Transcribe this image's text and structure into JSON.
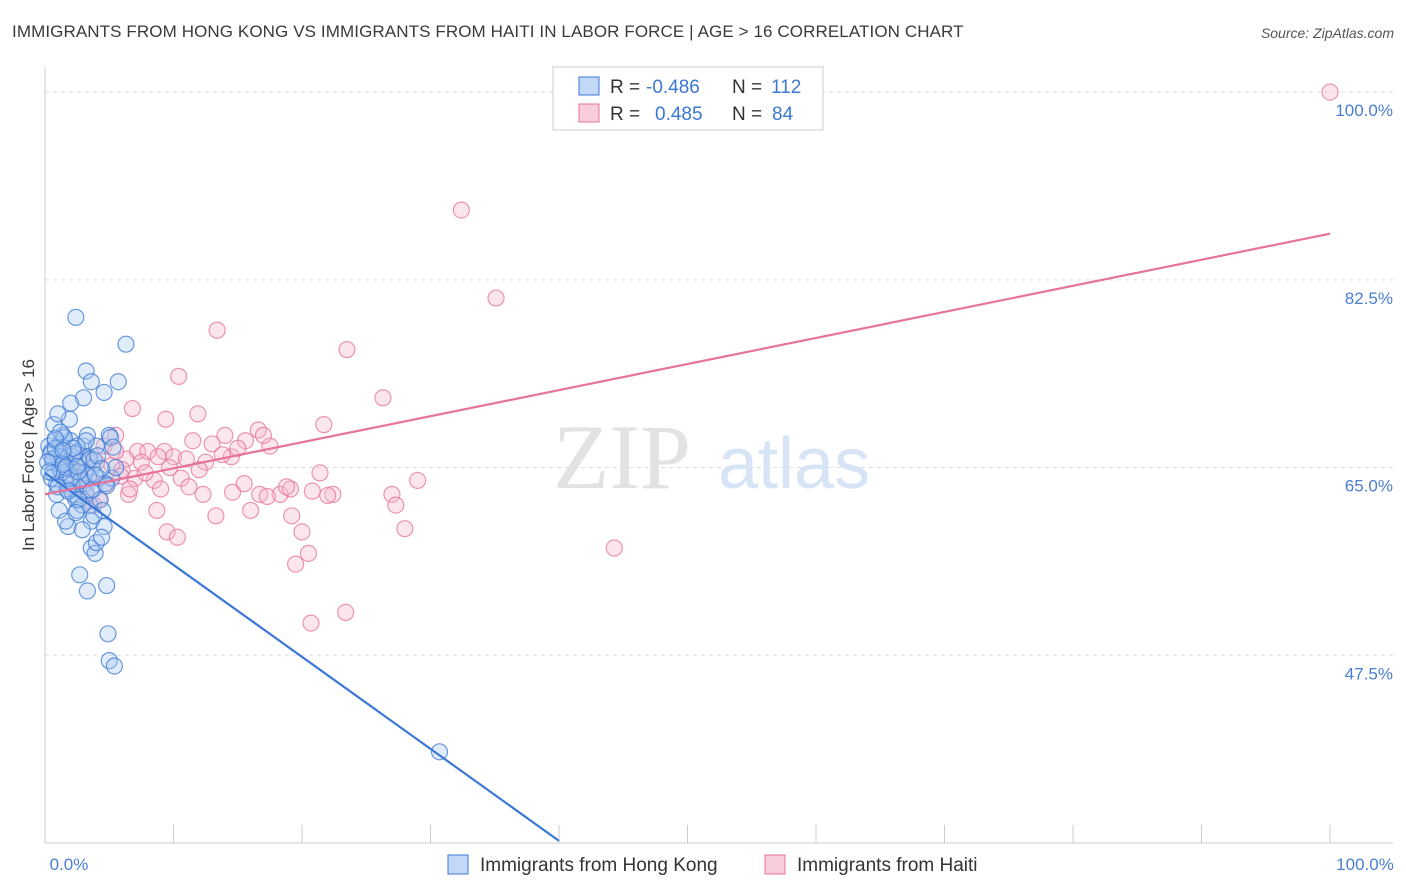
{
  "title": "IMMIGRANTS FROM HONG KONG VS IMMIGRANTS FROM HAITI IN LABOR FORCE | AGE > 16 CORRELATION CHART",
  "source": "Source: ZipAtlas.com",
  "watermark": {
    "zip": "ZIP",
    "atlas": "atlas"
  },
  "colors": {
    "blue": "#3b78d6",
    "blue_fill": "#a9c8f2",
    "pink": "#e6739a",
    "pink_fill": "#f5b8cc",
    "grid": "#dddddd",
    "tick_text": "#4a7fd0"
  },
  "legend": {
    "r_label": "R =",
    "n_label": "N =",
    "rows": [
      {
        "series": "hk",
        "r": "-0.486",
        "n": "112"
      },
      {
        "series": "haiti",
        "r": "0.485",
        "n": "84"
      }
    ]
  },
  "chart_data": {
    "type": "scatter",
    "title": "IMMIGRANTS FROM HONG KONG VS IMMIGRANTS FROM HAITI IN LABOR FORCE | AGE > 16 CORRELATION CHART",
    "xlabel": "",
    "ylabel": "In Labor Force | Age > 16",
    "xlim": [
      0,
      100
    ],
    "ylim": [
      30,
      101.5
    ],
    "x_tick_labels": [
      {
        "value": 0,
        "label": "0.0%"
      },
      {
        "value": 100,
        "label": "100.0%"
      }
    ],
    "y_ticks": [
      {
        "value": 100,
        "label": "100.0%"
      },
      {
        "value": 82.5,
        "label": "82.5%"
      },
      {
        "value": 65,
        "label": "65.0%"
      },
      {
        "value": 47.5,
        "label": "47.5%"
      }
    ],
    "grid": true,
    "legend_position": "top-center",
    "series": [
      {
        "name": "Immigrants from Hong Kong",
        "key": "hk",
        "trend": {
          "x0": 0,
          "y0": 64.5,
          "x1": 40,
          "y1": 30.2
        },
        "points": [
          [
            0.3,
            67
          ],
          [
            0.5,
            66.5
          ],
          [
            0.6,
            65.5
          ],
          [
            0.8,
            67.5
          ],
          [
            1,
            66
          ],
          [
            1.1,
            65
          ],
          [
            1.2,
            67.2
          ],
          [
            0.9,
            63.5
          ],
          [
            1.3,
            64.5
          ],
          [
            1.4,
            68
          ],
          [
            1.5,
            65.8
          ],
          [
            1.6,
            66.8
          ],
          [
            1.7,
            64
          ],
          [
            1.8,
            65.2
          ],
          [
            2,
            67.5
          ],
          [
            2.1,
            66
          ],
          [
            2.2,
            64.8
          ],
          [
            2.3,
            63
          ],
          [
            1.9,
            69.5
          ],
          [
            2.4,
            62
          ],
          [
            2.5,
            61
          ],
          [
            2.6,
            66.5
          ],
          [
            2.7,
            65.5
          ],
          [
            2.8,
            64
          ],
          [
            3,
            67
          ],
          [
            3.1,
            63.5
          ],
          [
            3.2,
            62.5
          ],
          [
            3.3,
            68
          ],
          [
            3.4,
            66
          ],
          [
            3.5,
            61.5
          ],
          [
            3.6,
            60
          ],
          [
            3.7,
            65
          ],
          [
            3.8,
            63
          ],
          [
            4,
            67
          ],
          [
            4.2,
            64
          ],
          [
            4.3,
            62
          ],
          [
            4.5,
            61
          ],
          [
            4.7,
            63.5
          ],
          [
            5,
            68
          ],
          [
            5.2,
            64
          ],
          [
            5.5,
            65
          ],
          [
            0.7,
            69
          ],
          [
            1,
            70
          ],
          [
            1.5,
            67.8
          ],
          [
            2,
            71
          ],
          [
            2.5,
            67
          ],
          [
            3,
            71.5
          ],
          [
            3.2,
            74
          ],
          [
            3.6,
            73
          ],
          [
            4.6,
            72
          ],
          [
            5.7,
            73
          ],
          [
            6.3,
            76.5
          ],
          [
            2.4,
            79
          ],
          [
            1.1,
            61
          ],
          [
            1.8,
            59.5
          ],
          [
            2.2,
            62.5
          ],
          [
            2.7,
            55
          ],
          [
            3.3,
            53.5
          ],
          [
            3.6,
            57.5
          ],
          [
            3.9,
            57
          ],
          [
            4,
            58
          ],
          [
            4.6,
            59.5
          ],
          [
            4.8,
            54
          ],
          [
            4.9,
            49.5
          ],
          [
            5,
            47
          ],
          [
            5.4,
            46.5
          ],
          [
            1.6,
            60
          ],
          [
            2.9,
            61.5
          ],
          [
            3.8,
            60.5
          ],
          [
            4.4,
            58.5
          ],
          [
            0.5,
            64
          ],
          [
            0.9,
            62.5
          ],
          [
            1.3,
            66
          ],
          [
            1.7,
            63
          ],
          [
            2.1,
            63.5
          ],
          [
            2.6,
            62
          ],
          [
            3.1,
            64.5
          ],
          [
            3.5,
            65.8
          ],
          [
            0.4,
            66.2
          ],
          [
            0.6,
            65.8
          ],
          [
            0.8,
            66.8
          ],
          [
            1.2,
            64.8
          ],
          [
            1.4,
            65.3
          ],
          [
            2.3,
            66.3
          ],
          [
            2.8,
            63.8
          ],
          [
            3.4,
            64.2
          ],
          [
            0.2,
            65.5
          ],
          [
            0.6,
            64.5
          ],
          [
            1.2,
            68.3
          ],
          [
            1.6,
            65
          ],
          [
            2,
            64
          ],
          [
            2.2,
            66.8
          ],
          [
            2.6,
            64.6
          ],
          [
            3.2,
            67.5
          ],
          [
            3.8,
            65.7
          ],
          [
            4.1,
            66.1
          ],
          [
            4.4,
            64.9
          ],
          [
            4.8,
            63.3
          ],
          [
            5.1,
            67.8
          ],
          [
            5.3,
            66.9
          ],
          [
            1,
            63.2
          ],
          [
            1.8,
            62.8
          ],
          [
            2.4,
            60.8
          ],
          [
            2.9,
            59.2
          ],
          [
            0.8,
            67.7
          ],
          [
            1.4,
            66.6
          ],
          [
            0.3,
            64.6
          ],
          [
            2.5,
            65.1
          ],
          [
            3.6,
            62.9
          ],
          [
            3.9,
            64.3
          ],
          [
            30.7,
            38.5
          ]
        ]
      },
      {
        "name": "Immigrants from Haiti",
        "key": "haiti",
        "trend": {
          "x0": 0,
          "y0": 62.5,
          "x1": 100,
          "y1": 86.8
        },
        "points": [
          [
            100,
            100
          ],
          [
            32.4,
            89
          ],
          [
            35.1,
            80.8
          ],
          [
            13.4,
            77.8
          ],
          [
            23.5,
            76
          ],
          [
            10.4,
            73.5
          ],
          [
            26.3,
            71.5
          ],
          [
            6.8,
            70.5
          ],
          [
            11.9,
            70
          ],
          [
            9.4,
            69.5
          ],
          [
            16.6,
            68.5
          ],
          [
            21.7,
            69
          ],
          [
            5.5,
            68
          ],
          [
            14,
            68
          ],
          [
            13,
            67.2
          ],
          [
            15.6,
            67.5
          ],
          [
            17.5,
            67
          ],
          [
            4.6,
            67
          ],
          [
            7.2,
            66.5
          ],
          [
            8,
            66.5
          ],
          [
            9.3,
            66.5
          ],
          [
            10,
            66
          ],
          [
            11,
            65.8
          ],
          [
            12.5,
            65.5
          ],
          [
            14.5,
            66
          ],
          [
            6.3,
            65.8
          ],
          [
            7.5,
            65.5
          ],
          [
            5.2,
            65.2
          ],
          [
            6,
            64.8
          ],
          [
            3,
            66
          ],
          [
            4,
            65.5
          ],
          [
            2.5,
            64.5
          ],
          [
            3.5,
            64
          ],
          [
            4.8,
            63.5
          ],
          [
            5.9,
            64.2
          ],
          [
            7,
            64
          ],
          [
            8.5,
            63.8
          ],
          [
            9,
            63
          ],
          [
            10.6,
            64
          ],
          [
            11.2,
            63.2
          ],
          [
            12.3,
            62.5
          ],
          [
            14.6,
            62.7
          ],
          [
            15.5,
            63.5
          ],
          [
            16.7,
            62.5
          ],
          [
            18.3,
            62.5
          ],
          [
            19.1,
            63
          ],
          [
            20.8,
            62.8
          ],
          [
            22.4,
            62.5
          ],
          [
            8.7,
            61
          ],
          [
            9.5,
            59
          ],
          [
            10.3,
            58.5
          ],
          [
            13.3,
            60.5
          ],
          [
            16,
            61
          ],
          [
            19.2,
            60.5
          ],
          [
            20,
            59
          ],
          [
            20.5,
            57
          ],
          [
            17.3,
            62.3
          ],
          [
            18.8,
            63.2
          ],
          [
            22,
            62.4
          ],
          [
            27,
            62.5
          ],
          [
            27.3,
            61.5
          ],
          [
            29,
            63.8
          ],
          [
            28,
            59.3
          ],
          [
            21.4,
            64.5
          ],
          [
            19.5,
            56
          ],
          [
            20.7,
            50.5
          ],
          [
            23.4,
            51.5
          ],
          [
            44.3,
            57.5
          ],
          [
            4.2,
            62
          ],
          [
            6.5,
            62.5
          ],
          [
            7.8,
            64.5
          ],
          [
            3.2,
            63.2
          ],
          [
            2,
            64.8
          ],
          [
            5.5,
            66.5
          ],
          [
            8.8,
            66
          ],
          [
            11.5,
            67.5
          ],
          [
            13.8,
            66.2
          ],
          [
            15,
            66.8
          ],
          [
            17,
            68
          ],
          [
            1.8,
            65.5
          ],
          [
            3.8,
            61.5
          ],
          [
            6.6,
            63
          ],
          [
            9.7,
            65
          ],
          [
            12,
            64.8
          ]
        ]
      }
    ]
  },
  "bottom_legend": {
    "hk": "Immigrants from Hong Kong",
    "haiti": "Immigrants from Haiti"
  }
}
